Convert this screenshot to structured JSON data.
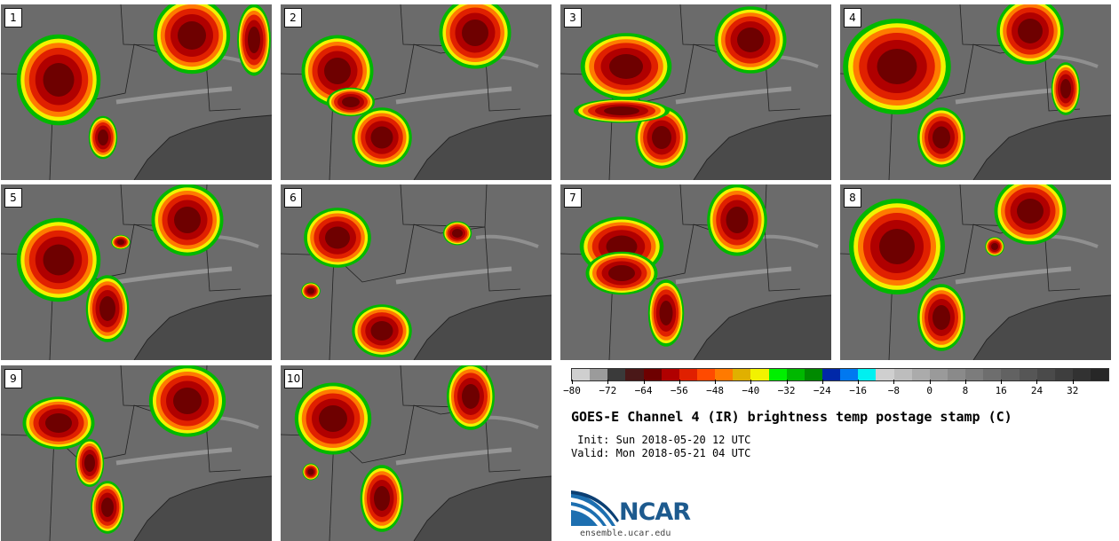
{
  "title": "GOES-E Channel 4 (IR) brightness temp postage stamp (C)",
  "init_label": " Init: Sun 2018-05-20 12 UTC",
  "valid_label": "Valid: Mon 2018-05-21 04 UTC",
  "logo_text": "NCAR",
  "website": "ensemble.ucar.edu",
  "panels": [
    {
      "label": "1"
    },
    {
      "label": "2"
    },
    {
      "label": "3"
    },
    {
      "label": "4"
    },
    {
      "label": "5"
    },
    {
      "label": "6"
    },
    {
      "label": "7"
    },
    {
      "label": "8"
    },
    {
      "label": "9"
    },
    {
      "label": "10"
    }
  ],
  "colorbar": {
    "colors": [
      "#cfcfcf",
      "#9b9b9b",
      "#3a3a3a",
      "#4a1818",
      "#6e0000",
      "#b00000",
      "#e02000",
      "#ff4a00",
      "#ff7a00",
      "#e0b000",
      "#f2f200",
      "#00f000",
      "#00b800",
      "#008a00",
      "#0028a8",
      "#0078f0",
      "#00f0f0",
      "#cfcfcf",
      "#bdbdbd",
      "#ababab",
      "#9a9a9a",
      "#8a8a8a",
      "#7c7c7c",
      "#6e6e6e",
      "#626262",
      "#565656",
      "#4a4a4a",
      "#3e3e3e",
      "#323232",
      "#272727"
    ],
    "tick_labels": [
      "−80",
      "−72",
      "−64",
      "−56",
      "−48",
      "−40",
      "−32",
      "−24",
      "−16",
      "−8",
      "0",
      "8",
      "16",
      "24",
      "32"
    ],
    "vmin": -80,
    "vmax": 40
  },
  "map_colors": {
    "background": "#6b6b6b",
    "gulf": "#4a4a4a",
    "border": "#222222",
    "cloud_light": "#bdbdbd"
  }
}
